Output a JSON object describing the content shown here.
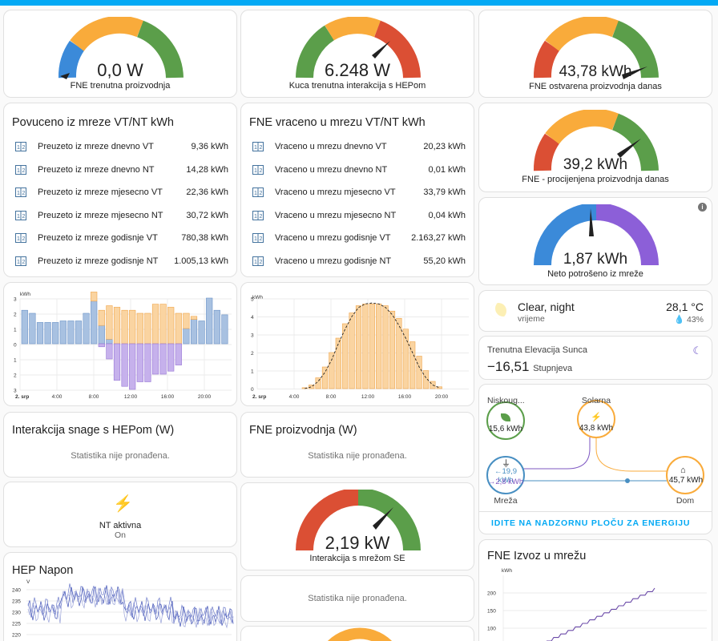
{
  "gauges": {
    "fne_now": {
      "value": "0,0 W",
      "label": "FNE trenutna proizvodnja",
      "needle_fraction": 0.0
    },
    "house": {
      "value": "6.248 W",
      "label": "Kuca trenutna interakcija s HEPom",
      "needle_fraction": 0.7
    },
    "fne_today": {
      "value": "43,78 kWh",
      "label": "FNE ostvarena proizvodnja danas",
      "needle_fraction": 0.9
    },
    "fne_forecast": {
      "value": "39,2 kWh",
      "label": "FNE - procijenjena proizvodnja danas",
      "needle_fraction": 0.8
    },
    "net": {
      "value": "1,87 kWh",
      "label": "Neto potrošeno iz mreže",
      "needle_fraction": 0.53
    },
    "grid_se": {
      "value": "2,19 kW",
      "label": "Interakcija s mrežom SE",
      "needle_fraction": 0.75
    }
  },
  "pulled": {
    "title": "Povuceno iz mreze VT/NT kWh",
    "rows": [
      {
        "name": "Preuzeto iz mreze dnevno VT",
        "value": "9,36 kWh"
      },
      {
        "name": "Preuzeto iz mreze dnevno NT",
        "value": "14,28 kWh"
      },
      {
        "name": "Preuzeto iz mreze mjesecno VT",
        "value": "22,36 kWh"
      },
      {
        "name": "Preuzeto iz mreze mjesecno NT",
        "value": "30,72 kWh"
      },
      {
        "name": "Preuzeto iz mreze godisnje VT",
        "value": "780,38 kWh"
      },
      {
        "name": "Preuzeto iz mreze godisnje NT",
        "value": "1.005,13 kWh"
      }
    ]
  },
  "returned": {
    "title": "FNE vraceno u mrezu VT/NT kWh",
    "rows": [
      {
        "name": "Vraceno u mrezu dnevno VT",
        "value": "20,23 kWh"
      },
      {
        "name": "Vraceno u mrezu dnevno NT",
        "value": "0,01 kWh"
      },
      {
        "name": "Vraceno u mrezu mjesecno VT",
        "value": "33,79 kWh"
      },
      {
        "name": "Vraceno u mrezu mjesecno NT",
        "value": "0,04 kWh"
      },
      {
        "name": "Vraceno u mrezu godisnje VT",
        "value": "2.163,27 kWh"
      },
      {
        "name": "Vraceno u mrezu godisnje NT",
        "value": "55,20 kWh"
      }
    ]
  },
  "chart1": {
    "unit": "kWh",
    "yticks": [
      "3",
      "2",
      "1",
      "0",
      "1",
      "2",
      "3"
    ],
    "xticks": [
      "2. srp",
      "4:00",
      "8:00",
      "12:00",
      "16:00",
      "20:00"
    ]
  },
  "chart2": {
    "unit": "kWh",
    "yticks": [
      "5",
      "4",
      "3",
      "2",
      "1",
      "0"
    ],
    "xticks": [
      "2. srp",
      "4:00",
      "8:00",
      "12:00",
      "16:00",
      "20:00"
    ]
  },
  "weather": {
    "condition": "Clear, night",
    "sub": "vrijeme",
    "temp": "28,1 °C",
    "humidity": "43%"
  },
  "sun": {
    "title": "Trenutna Elevacija Sunca",
    "value": "−16,51",
    "unit": "Stupnjeva"
  },
  "energy": {
    "low_label": "Niskoug...",
    "low_value": "15,6 kWh",
    "solar_label": "Solarna",
    "solar_value": "43,8 kWh",
    "grid_label": "Mreža",
    "grid_in": "←19,9 kWh",
    "grid_out": "→2,8 kWh",
    "home_label": "Dom",
    "home_value": "45,7 kWh",
    "link": "IDITE NA NADZORNU PLOČU ZA ENERGIJU"
  },
  "hep_power": {
    "title": "Interakcija snage s HEPom (W)",
    "empty": "Statistika nije pronađena."
  },
  "fne_prod": {
    "title": "FNE proizvodnja (W)",
    "empty": "Statistika nije pronađena."
  },
  "nt": {
    "name": "NT aktivna",
    "state": "On"
  },
  "hep_napon": {
    "title": "HEP Napon",
    "unit": "V",
    "yticks": [
      "240",
      "235",
      "230",
      "225",
      "220"
    ]
  },
  "stat_empty": {
    "text": "Statistika nije pronađena."
  },
  "fne_export": {
    "title": "FNE Izvoz u mrežu",
    "unit": "kWh",
    "yticks": [
      "200",
      "150",
      "100"
    ]
  },
  "colors": {
    "green": "#5b9e4a",
    "orange": "#f9ab3b",
    "red": "#db4f34",
    "blue": "#3b8ad9",
    "purple": "#8c5fd8"
  }
}
